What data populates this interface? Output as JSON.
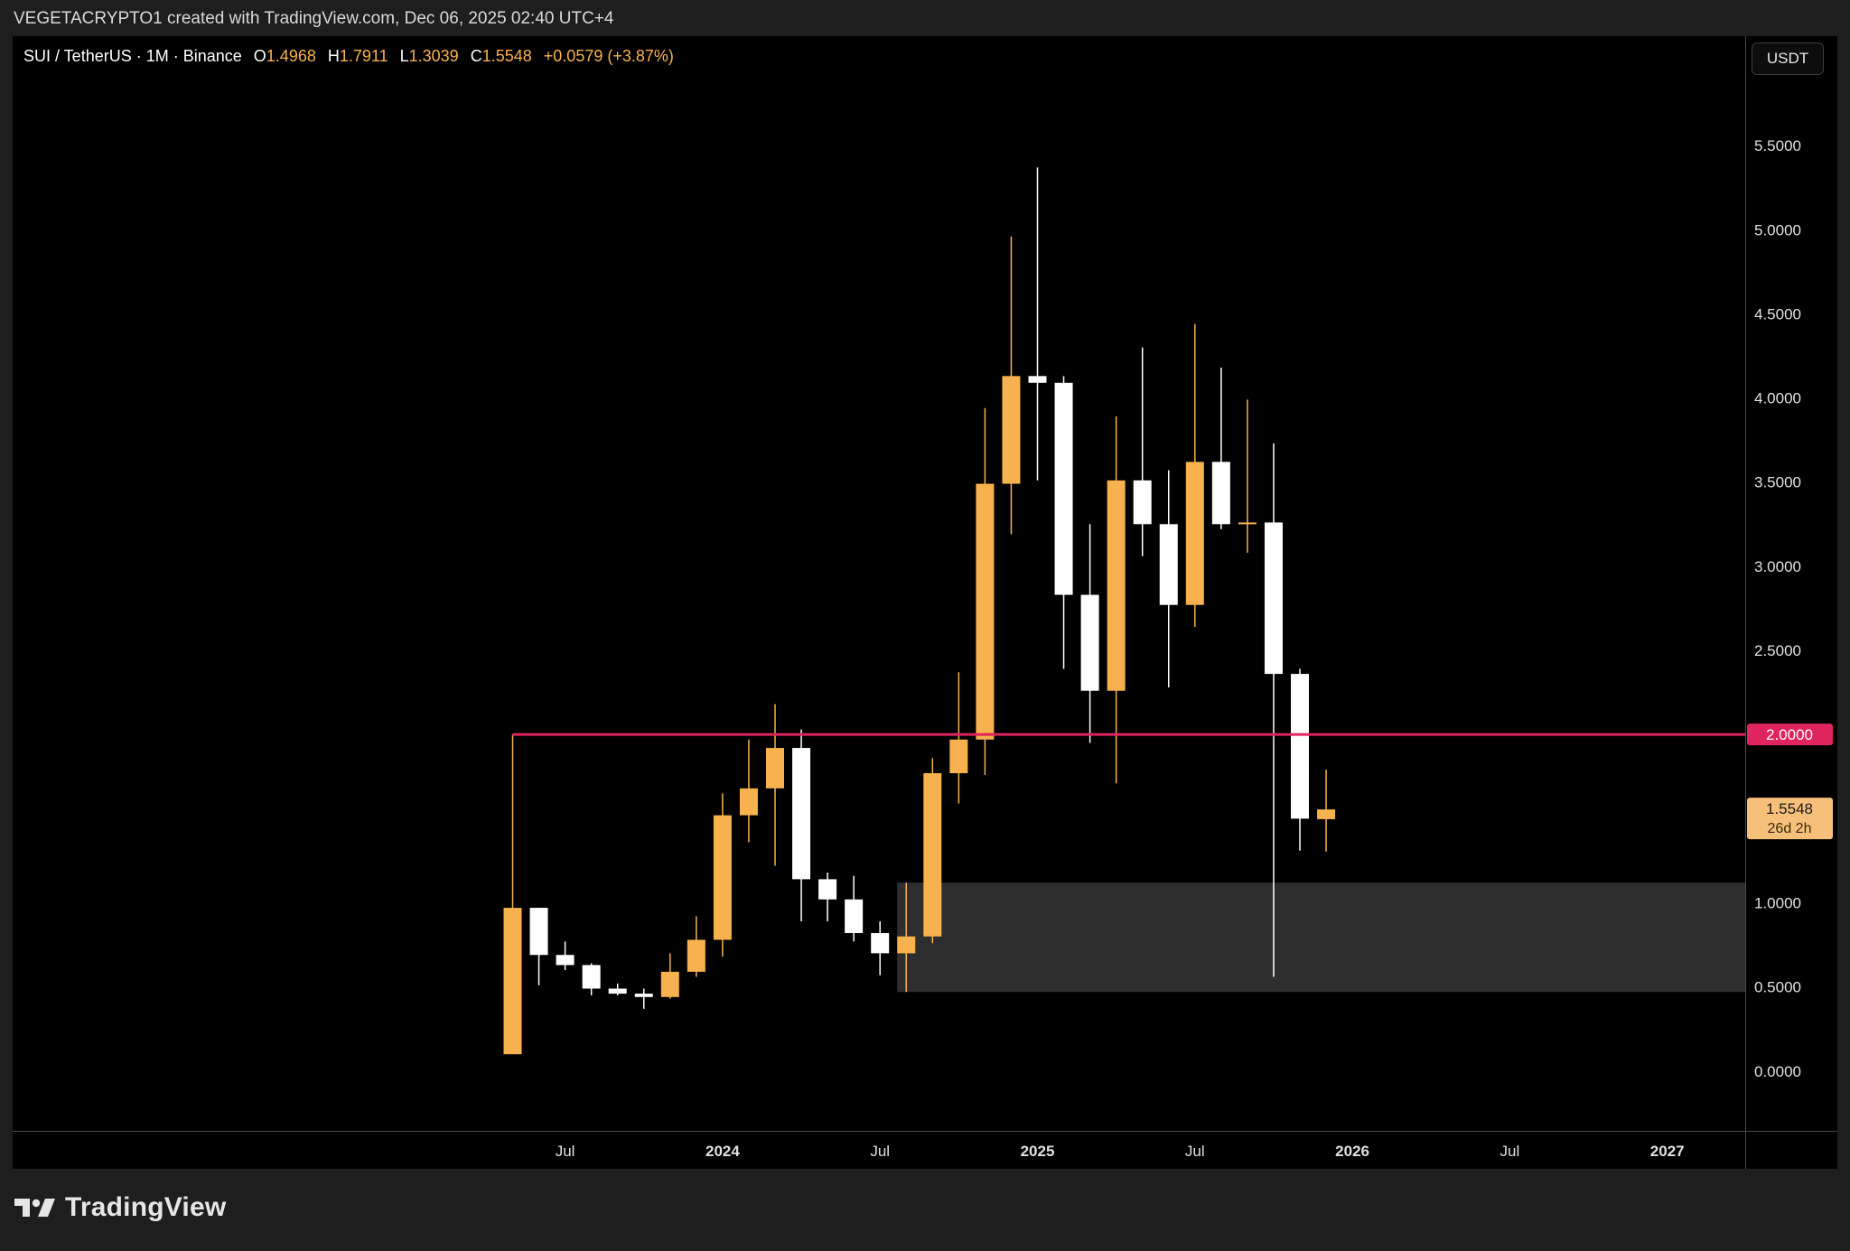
{
  "header": {
    "attribution": "VEGETACRYPTO1 created with TradingView.com, Dec 06, 2025 02:40 UTC+4"
  },
  "legend": {
    "symbol": "SUI / TetherUS · 1M · Binance",
    "open_label": "O",
    "open": "1.4968",
    "high_label": "H",
    "high": "1.7911",
    "low_label": "L",
    "low": "1.3039",
    "close_label": "C",
    "close": "1.5548",
    "change": "+0.0579 (+3.87%)"
  },
  "currency_button": "USDT",
  "footer": {
    "brand": "TradingView"
  },
  "colors": {
    "up": "#f7b24f",
    "down": "#ffffff",
    "level_line": "#e0245e",
    "zone": "#2e2e2e"
  },
  "chart_data": {
    "type": "candlestick",
    "interval": "1M",
    "ylim": [
      -0.35,
      6.15
    ],
    "y_ticks": [
      "5.5000",
      "5.0000",
      "4.5000",
      "4.0000",
      "3.5000",
      "3.0000",
      "2.5000",
      "1.0000",
      "0.5000",
      "0.0000"
    ],
    "x_ticks": [
      {
        "label": "Jul",
        "bold": false,
        "index": 2
      },
      {
        "label": "2024",
        "bold": true,
        "index": 8
      },
      {
        "label": "Jul",
        "bold": false,
        "index": 14
      },
      {
        "label": "2025",
        "bold": true,
        "index": 20
      },
      {
        "label": "Jul",
        "bold": false,
        "index": 26
      },
      {
        "label": "2026",
        "bold": true,
        "index": 32
      },
      {
        "label": "Jul",
        "bold": false,
        "index": 38
      },
      {
        "label": "2027",
        "bold": true,
        "index": 44
      }
    ],
    "candles": [
      {
        "o": 0.1,
        "h": 2.0,
        "l": 0.1,
        "c": 0.97
      },
      {
        "o": 0.97,
        "h": 0.97,
        "l": 0.51,
        "c": 0.69
      },
      {
        "o": 0.69,
        "h": 0.77,
        "l": 0.6,
        "c": 0.63
      },
      {
        "o": 0.63,
        "h": 0.64,
        "l": 0.45,
        "c": 0.49
      },
      {
        "o": 0.49,
        "h": 0.52,
        "l": 0.45,
        "c": 0.46
      },
      {
        "o": 0.46,
        "h": 0.49,
        "l": 0.37,
        "c": 0.44
      },
      {
        "o": 0.44,
        "h": 0.7,
        "l": 0.43,
        "c": 0.59
      },
      {
        "o": 0.59,
        "h": 0.92,
        "l": 0.56,
        "c": 0.78
      },
      {
        "o": 0.78,
        "h": 1.65,
        "l": 0.68,
        "c": 1.52
      },
      {
        "o": 1.52,
        "h": 1.97,
        "l": 1.36,
        "c": 1.68
      },
      {
        "o": 1.68,
        "h": 2.18,
        "l": 1.22,
        "c": 1.92
      },
      {
        "o": 1.92,
        "h": 2.03,
        "l": 0.89,
        "c": 1.14
      },
      {
        "o": 1.14,
        "h": 1.18,
        "l": 0.89,
        "c": 1.02
      },
      {
        "o": 1.02,
        "h": 1.16,
        "l": 0.77,
        "c": 0.82
      },
      {
        "o": 0.82,
        "h": 0.89,
        "l": 0.57,
        "c": 0.7
      },
      {
        "o": 0.7,
        "h": 1.12,
        "l": 0.47,
        "c": 0.8
      },
      {
        "o": 0.8,
        "h": 1.86,
        "l": 0.76,
        "c": 1.77
      },
      {
        "o": 1.77,
        "h": 2.37,
        "l": 1.59,
        "c": 1.97
      },
      {
        "o": 1.97,
        "h": 3.94,
        "l": 1.76,
        "c": 3.49
      },
      {
        "o": 3.49,
        "h": 4.96,
        "l": 3.19,
        "c": 4.13
      },
      {
        "o": 4.13,
        "h": 5.37,
        "l": 3.51,
        "c": 4.09
      },
      {
        "o": 4.09,
        "h": 4.13,
        "l": 2.39,
        "c": 2.83
      },
      {
        "o": 2.83,
        "h": 3.25,
        "l": 1.95,
        "c": 2.26
      },
      {
        "o": 2.26,
        "h": 3.89,
        "l": 1.71,
        "c": 3.51
      },
      {
        "o": 3.51,
        "h": 4.3,
        "l": 3.06,
        "c": 3.25
      },
      {
        "o": 3.25,
        "h": 3.57,
        "l": 2.28,
        "c": 2.77
      },
      {
        "o": 2.77,
        "h": 4.44,
        "l": 2.64,
        "c": 3.62
      },
      {
        "o": 3.62,
        "h": 4.18,
        "l": 3.22,
        "c": 3.25
      },
      {
        "o": 3.25,
        "h": 3.99,
        "l": 3.08,
        "c": 3.26
      },
      {
        "o": 3.26,
        "h": 3.73,
        "l": 0.56,
        "c": 2.36
      },
      {
        "o": 2.36,
        "h": 2.39,
        "l": 1.31,
        "c": 1.5
      },
      {
        "o": 1.4968,
        "h": 1.7911,
        "l": 1.3039,
        "c": 1.5548
      }
    ],
    "horizontal_line": {
      "value": 2.0,
      "label": "2.0000",
      "from_index": 0
    },
    "zone": {
      "low": 0.47,
      "high": 1.12,
      "from_index": 15
    },
    "last_price": {
      "value": 1.5548,
      "label": "1.5548",
      "countdown": "26d 2h"
    }
  }
}
